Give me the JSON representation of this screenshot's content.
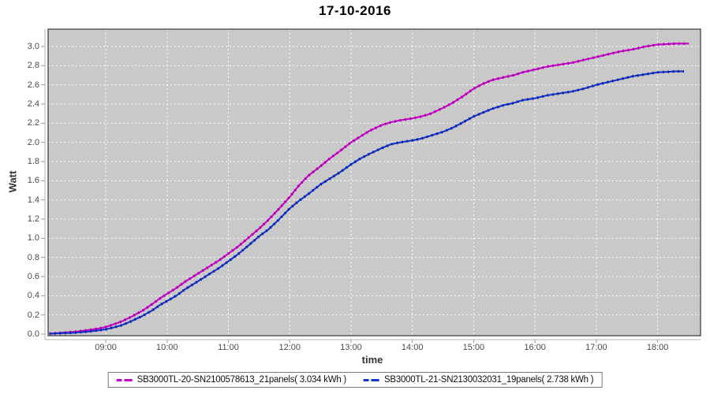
{
  "title": "17-10-2016",
  "chart_data": {
    "type": "line",
    "title": "17-10-2016",
    "xlabel": "time",
    "ylabel": "Watt",
    "grid": true,
    "legend_position": "bottom",
    "plot_bg": "#c9c9c9",
    "gridline_color": "#ffffff",
    "x_range_hours": [
      8.06,
      18.7
    ],
    "y_range": [
      0.0,
      3.18
    ],
    "x_tick_labels": [
      "09:00",
      "10:00",
      "11:00",
      "12:00",
      "13:00",
      "14:00",
      "15:00",
      "16:00",
      "17:00",
      "18:00"
    ],
    "x_tick_hours": [
      9,
      10,
      11,
      12,
      13,
      14,
      15,
      16,
      17,
      18
    ],
    "y_ticks": [
      "0.0",
      "0.2",
      "0.4",
      "0.6",
      "0.8",
      "1.0",
      "1.2",
      "1.4",
      "1.6",
      "1.8",
      "2.0",
      "2.2",
      "2.4",
      "2.6",
      "2.8",
      "3.0"
    ],
    "series": [
      {
        "name": "SB3000TL-20-SN2100578613_21panels( 3.034 kWh )",
        "color": "#cc00cc",
        "marker_color": "#9c009c",
        "total_kwh": "3.034",
        "x": [
          8.08,
          8.3,
          8.5,
          8.7,
          8.9,
          9.0,
          9.1,
          9.25,
          9.4,
          9.5,
          9.6,
          9.75,
          9.9,
          10.0,
          10.15,
          10.3,
          10.5,
          10.7,
          10.85,
          11.0,
          11.15,
          11.3,
          11.5,
          11.65,
          11.8,
          12.0,
          12.15,
          12.3,
          12.5,
          12.65,
          12.8,
          13.0,
          13.15,
          13.3,
          13.5,
          13.65,
          13.8,
          14.0,
          14.15,
          14.3,
          14.5,
          14.65,
          14.8,
          15.0,
          15.15,
          15.3,
          15.5,
          15.65,
          15.8,
          16.0,
          16.2,
          16.4,
          16.6,
          16.8,
          17.0,
          17.2,
          17.4,
          17.6,
          17.8,
          18.0,
          18.15,
          18.3,
          18.45,
          18.51
        ],
        "y": [
          0.005,
          0.015,
          0.025,
          0.04,
          0.06,
          0.075,
          0.095,
          0.13,
          0.175,
          0.21,
          0.245,
          0.31,
          0.38,
          0.42,
          0.48,
          0.55,
          0.63,
          0.71,
          0.77,
          0.84,
          0.91,
          0.99,
          1.1,
          1.19,
          1.29,
          1.43,
          1.55,
          1.65,
          1.75,
          1.83,
          1.9,
          2.0,
          2.06,
          2.12,
          2.18,
          2.21,
          2.23,
          2.25,
          2.27,
          2.3,
          2.36,
          2.41,
          2.47,
          2.56,
          2.61,
          2.65,
          2.68,
          2.7,
          2.73,
          2.76,
          2.79,
          2.81,
          2.83,
          2.86,
          2.89,
          2.92,
          2.95,
          2.97,
          3.0,
          3.02,
          3.025,
          3.03,
          3.03,
          3.03
        ]
      },
      {
        "name": "SB3000TL-21-SN2130032031_19panels( 2.738 kWh )",
        "color": "#1233cc",
        "marker_color": "#0a1f99",
        "total_kwh": "2.738",
        "x": [
          8.08,
          8.3,
          8.5,
          8.7,
          8.9,
          9.0,
          9.1,
          9.25,
          9.4,
          9.5,
          9.6,
          9.75,
          9.9,
          10.0,
          10.15,
          10.3,
          10.5,
          10.7,
          10.85,
          11.0,
          11.15,
          11.3,
          11.5,
          11.65,
          11.8,
          12.0,
          12.15,
          12.3,
          12.5,
          12.65,
          12.8,
          13.0,
          13.15,
          13.3,
          13.5,
          13.65,
          13.8,
          14.0,
          14.15,
          14.3,
          14.5,
          14.65,
          14.8,
          15.0,
          15.15,
          15.3,
          15.5,
          15.65,
          15.8,
          16.0,
          16.2,
          16.4,
          16.6,
          16.8,
          17.0,
          17.2,
          17.4,
          17.6,
          17.8,
          18.0,
          18.15,
          18.3,
          18.43
        ],
        "y": [
          0.005,
          0.01,
          0.015,
          0.025,
          0.04,
          0.05,
          0.065,
          0.09,
          0.13,
          0.16,
          0.19,
          0.245,
          0.31,
          0.345,
          0.4,
          0.47,
          0.55,
          0.63,
          0.69,
          0.76,
          0.83,
          0.91,
          1.02,
          1.09,
          1.18,
          1.31,
          1.39,
          1.46,
          1.56,
          1.62,
          1.68,
          1.77,
          1.83,
          1.88,
          1.94,
          1.98,
          2.0,
          2.02,
          2.04,
          2.07,
          2.11,
          2.15,
          2.2,
          2.27,
          2.31,
          2.35,
          2.39,
          2.41,
          2.44,
          2.46,
          2.49,
          2.51,
          2.53,
          2.56,
          2.6,
          2.63,
          2.66,
          2.69,
          2.71,
          2.73,
          2.735,
          2.74,
          2.74
        ]
      }
    ]
  }
}
